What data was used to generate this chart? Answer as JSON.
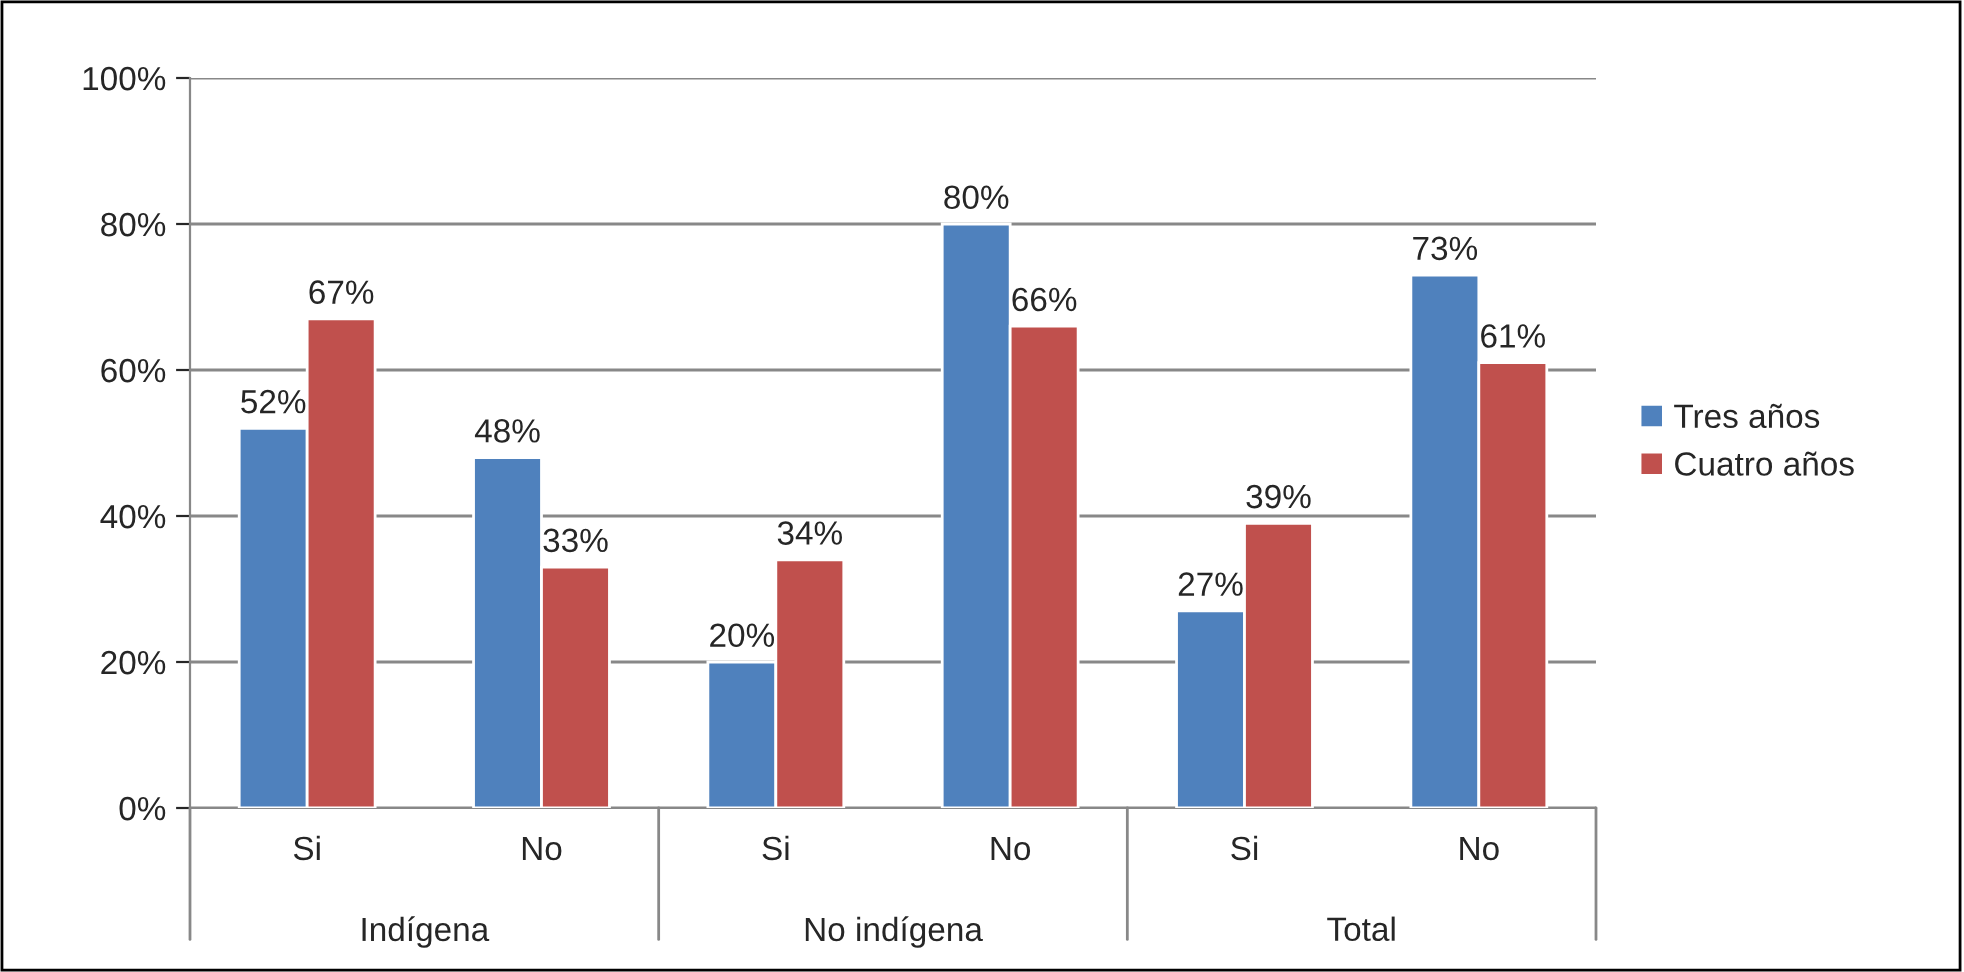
{
  "chart_data": {
    "type": "bar",
    "categories": [
      "Si",
      "No",
      "Si",
      "No",
      "Si",
      "No"
    ],
    "series": [
      {
        "name": "Tres años",
        "color": "#4f81bd",
        "values": [
          52,
          48,
          20,
          80,
          27,
          73
        ],
        "value_labels": [
          "52%",
          "48%",
          "20%",
          "80%",
          "27%",
          "73%"
        ]
      },
      {
        "name": "Cuatro años",
        "color": "#c0504d",
        "values": [
          67,
          33,
          34,
          66,
          39,
          61
        ],
        "value_labels": [
          "67%",
          "33%",
          "34%",
          "66%",
          "39%",
          "61%"
        ]
      }
    ],
    "annotations": [
      "Indígena",
      "No indígena",
      "Total"
    ],
    "ylim": [
      0,
      100
    ],
    "yticks": [
      {
        "value": 0,
        "label": "0%"
      },
      {
        "value": 20,
        "label": "20%"
      },
      {
        "value": 40,
        "label": "40%"
      },
      {
        "value": 60,
        "label": "60%"
      },
      {
        "value": 80,
        "label": "80%"
      },
      {
        "value": 100,
        "label": "100%"
      }
    ],
    "grid": "y",
    "legend": "right"
  }
}
